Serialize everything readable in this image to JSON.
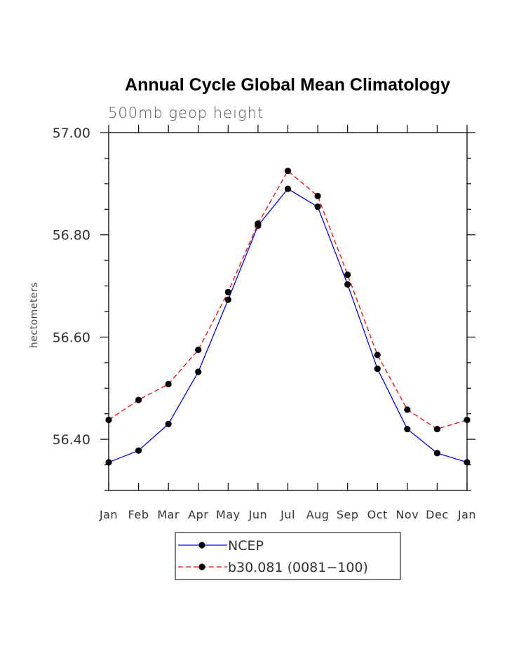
{
  "chart_data": {
    "type": "line",
    "title": "Annual Cycle Global Mean Climatology",
    "subtitle": "500mb geop height",
    "ylabel": "hectometers",
    "xlabel": "",
    "categories": [
      "Jan",
      "Feb",
      "Mar",
      "Apr",
      "May",
      "Jun",
      "Jul",
      "Aug",
      "Sep",
      "Oct",
      "Nov",
      "Dec",
      "Jan"
    ],
    "ylim": [
      56.3,
      57.0
    ],
    "yticks": [
      "56.40",
      "56.60",
      "56.80",
      "57.00"
    ],
    "ytick_values": [
      56.4,
      56.6,
      56.8,
      57.0
    ],
    "grid": false,
    "legend_position": "bottom-center",
    "series": [
      {
        "name": "NCEP",
        "color": "#0000ff",
        "dash": "solid",
        "marker": "filled-circle",
        "values": [
          56.355,
          56.378,
          56.43,
          56.532,
          56.673,
          56.818,
          56.89,
          56.855,
          56.703,
          56.538,
          56.42,
          56.373,
          56.355
        ]
      },
      {
        "name": "b30.081 (0081−100)",
        "color": "#ff0000",
        "dash": "dashed",
        "marker": "filled-circle",
        "values": [
          56.438,
          56.477,
          56.508,
          56.575,
          56.688,
          56.822,
          56.925,
          56.876,
          56.722,
          56.565,
          56.458,
          56.42,
          56.438
        ]
      }
    ]
  }
}
